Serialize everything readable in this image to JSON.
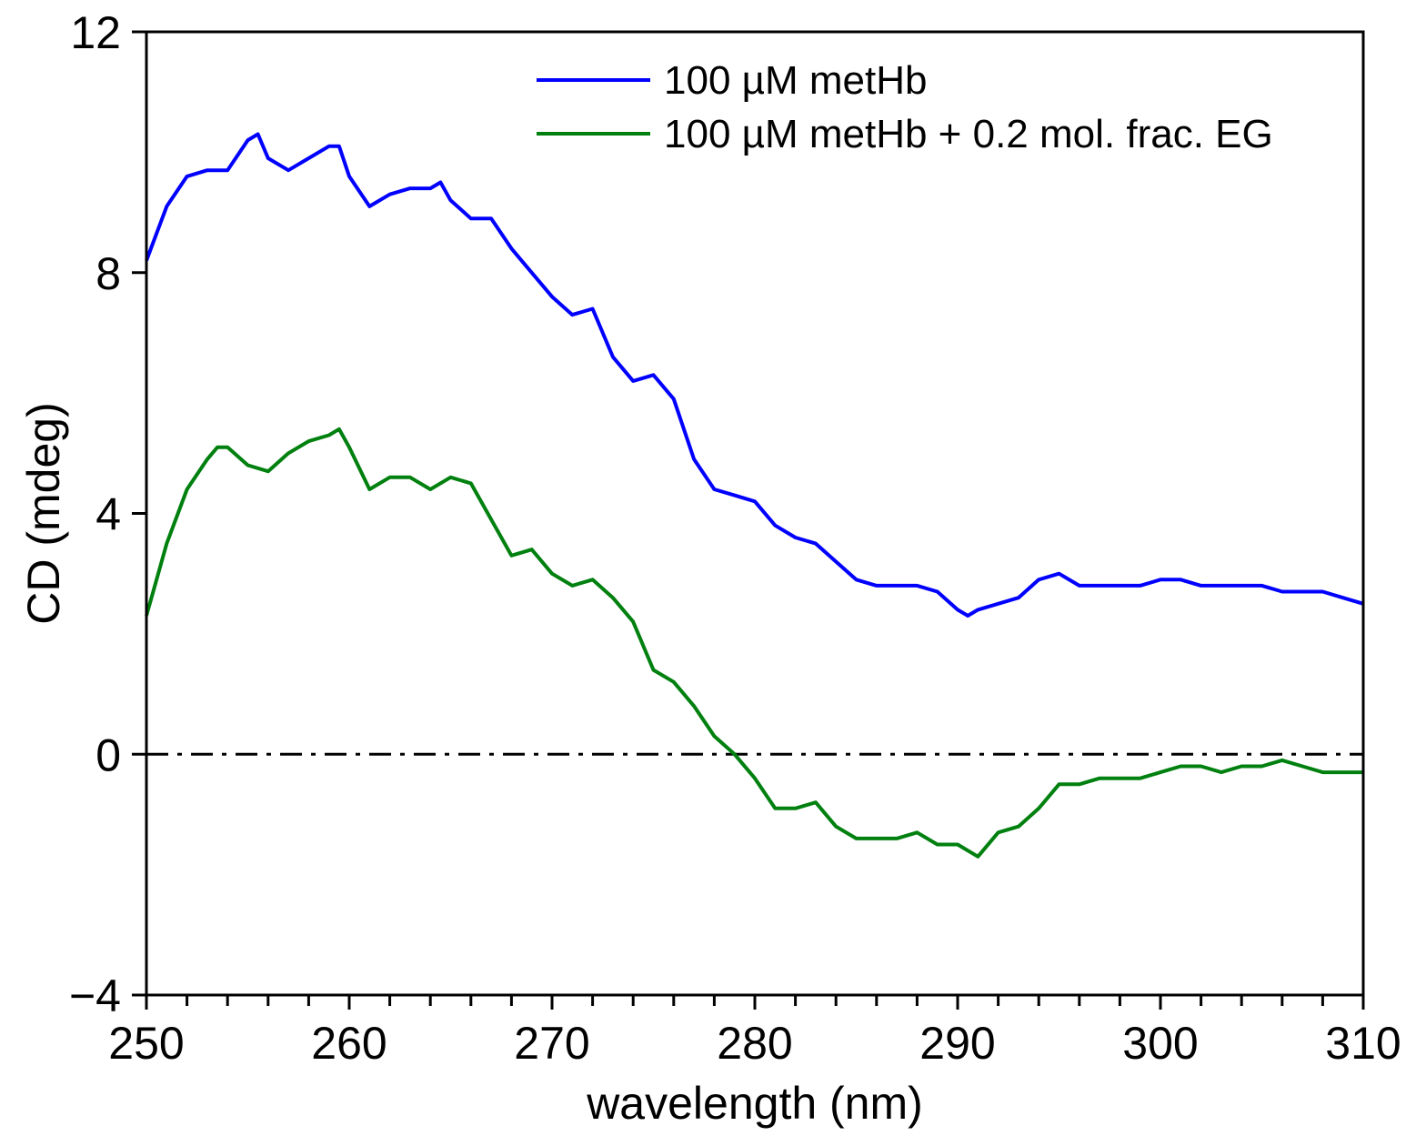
{
  "chart_data": {
    "type": "line",
    "title": "",
    "xlabel": "wavelength (nm)",
    "ylabel": "CD (mdeg)",
    "xlim": [
      250,
      310
    ],
    "ylim": [
      -4,
      12
    ],
    "x_major_ticks": [
      250,
      260,
      270,
      280,
      290,
      300,
      310
    ],
    "x_tick_labels": [
      "250",
      "260",
      "270",
      "280",
      "290",
      "300",
      "310"
    ],
    "x_minor_tick_step": 2,
    "y_major_ticks": [
      -4,
      0,
      4,
      8,
      12
    ],
    "y_tick_labels": [
      "−4",
      "0",
      "4",
      "8",
      "12"
    ],
    "grid": false,
    "legend_position": "top-right",
    "reference_line": {
      "y": 0,
      "style": "dash-dot",
      "color": "#000000"
    },
    "series": [
      {
        "name": "100 µM metHb",
        "color": "#0000ff",
        "x": [
          250,
          251,
          252,
          253,
          254,
          255,
          255.5,
          256,
          257,
          258,
          259,
          259.5,
          260,
          261,
          262,
          263,
          264,
          264.5,
          265,
          266,
          267,
          268,
          269,
          270,
          271,
          272,
          273,
          274,
          275,
          276,
          277,
          278,
          279,
          280,
          281,
          282,
          283,
          284,
          285,
          286,
          287,
          288,
          289,
          290,
          290.5,
          291,
          292,
          293,
          294,
          295,
          296,
          297,
          298,
          299,
          300,
          301,
          302,
          303,
          304,
          305,
          306,
          307,
          308,
          309,
          310
        ],
        "y": [
          8.2,
          9.1,
          9.6,
          9.7,
          9.7,
          10.2,
          10.3,
          9.9,
          9.7,
          9.9,
          10.1,
          10.1,
          9.6,
          9.1,
          9.3,
          9.4,
          9.4,
          9.5,
          9.2,
          8.9,
          8.9,
          8.4,
          8.0,
          7.6,
          7.3,
          7.4,
          6.6,
          6.2,
          6.3,
          5.9,
          4.9,
          4.4,
          4.3,
          4.2,
          3.8,
          3.6,
          3.5,
          3.2,
          2.9,
          2.8,
          2.8,
          2.8,
          2.7,
          2.4,
          2.3,
          2.4,
          2.5,
          2.6,
          2.9,
          3.0,
          2.8,
          2.8,
          2.8,
          2.8,
          2.9,
          2.9,
          2.8,
          2.8,
          2.8,
          2.8,
          2.7,
          2.7,
          2.7,
          2.6,
          2.5
        ]
      },
      {
        "name": "100 µM metHb + 0.2 mol. frac. EG",
        "color": "#00800f",
        "x": [
          250,
          251,
          252,
          253,
          253.5,
          254,
          255,
          256,
          257,
          258,
          259,
          259.5,
          260,
          261,
          262,
          263,
          264,
          265,
          266,
          267,
          268,
          269,
          270,
          271,
          272,
          273,
          274,
          275,
          276,
          277,
          278,
          279,
          280,
          281,
          282,
          283,
          284,
          285,
          286,
          287,
          288,
          289,
          290,
          291,
          292,
          293,
          294,
          295,
          296,
          297,
          298,
          299,
          300,
          301,
          302,
          303,
          304,
          305,
          306,
          307,
          308,
          309,
          310
        ],
        "y": [
          2.3,
          3.5,
          4.4,
          4.9,
          5.1,
          5.1,
          4.8,
          4.7,
          5.0,
          5.2,
          5.3,
          5.4,
          5.1,
          4.4,
          4.6,
          4.6,
          4.4,
          4.6,
          4.5,
          3.9,
          3.3,
          3.4,
          3.0,
          2.8,
          2.9,
          2.6,
          2.2,
          1.4,
          1.2,
          0.8,
          0.3,
          0.0,
          -0.4,
          -0.9,
          -0.9,
          -0.8,
          -1.2,
          -1.4,
          -1.4,
          -1.4,
          -1.3,
          -1.5,
          -1.5,
          -1.7,
          -1.3,
          -1.2,
          -0.9,
          -0.5,
          -0.5,
          -0.4,
          -0.4,
          -0.4,
          -0.3,
          -0.2,
          -0.2,
          -0.3,
          -0.2,
          -0.2,
          -0.1,
          -0.2,
          -0.3,
          -0.3,
          -0.3
        ]
      }
    ]
  }
}
